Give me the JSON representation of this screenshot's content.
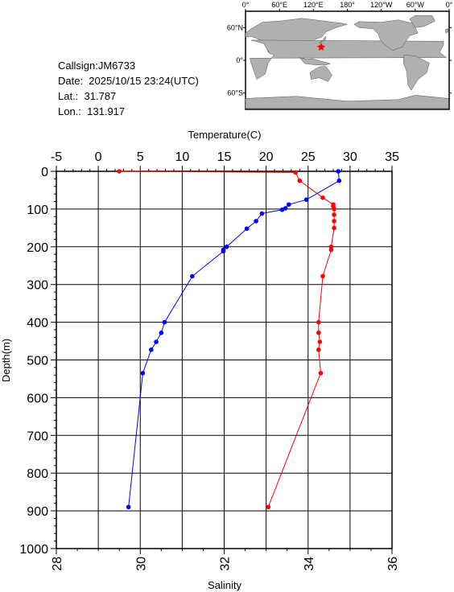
{
  "info": {
    "callsign": "Callsign:JM6733",
    "date": "Date:  2025/10/15 23:24(UTC)",
    "lat": "Lat.:  31.787",
    "lon": "Lon.:  131.917"
  },
  "map": {
    "lon_labels": [
      "0°",
      "60°E",
      "120°E",
      "180°",
      "120°W",
      "60°W",
      "0°"
    ],
    "lat_labels": [
      "60°N",
      "0°",
      "60°S"
    ],
    "marker_color": "#ff0000",
    "land_color": "#b0b0b0",
    "ocean_color": "#ffffff"
  },
  "chart_data": {
    "type": "line",
    "top_axis": {
      "label": "Temperature(C)",
      "range": [
        -5,
        35
      ],
      "ticks": [
        "-5",
        "0",
        "5",
        "10",
        "15",
        "20",
        "25",
        "30",
        "35"
      ]
    },
    "bottom_axis": {
      "label": "Salinity",
      "range": [
        28,
        36
      ],
      "ticks": [
        "28",
        "30",
        "32",
        "34",
        "36"
      ]
    },
    "y_axis": {
      "label": "Depth(m)",
      "range": [
        0,
        1000
      ],
      "inverted": true,
      "ticks": [
        "0",
        "100",
        "200",
        "300",
        "400",
        "500",
        "600",
        "700",
        "800",
        "900",
        "1000"
      ]
    },
    "grid": true,
    "series": [
      {
        "variable": "temperature",
        "color": "#0000ff",
        "points": [
          {
            "x": 28.6,
            "y": 0
          },
          {
            "x": 28.7,
            "y": 25
          },
          {
            "x": 24.8,
            "y": 75
          },
          {
            "x": 22.7,
            "y": 88
          },
          {
            "x": 22.3,
            "y": 98
          },
          {
            "x": 21.9,
            "y": 102
          },
          {
            "x": 19.5,
            "y": 112
          },
          {
            "x": 18.8,
            "y": 132
          },
          {
            "x": 17.7,
            "y": 152
          },
          {
            "x": 15.3,
            "y": 200
          },
          {
            "x": 14.9,
            "y": 208
          },
          {
            "x": 14.9,
            "y": 212
          },
          {
            "x": 11.2,
            "y": 278
          },
          {
            "x": 7.9,
            "y": 400
          },
          {
            "x": 7.5,
            "y": 428
          },
          {
            "x": 6.9,
            "y": 452
          },
          {
            "x": 6.3,
            "y": 473
          },
          {
            "x": 5.3,
            "y": 535
          },
          {
            "x": 3.6,
            "y": 890
          }
        ]
      },
      {
        "variable": "salinity",
        "color": "#ff0000",
        "points": [
          {
            "x": 29.5,
            "y": 0
          },
          {
            "x": 33.7,
            "y": 3
          },
          {
            "x": 33.8,
            "y": 25
          },
          {
            "x": 34.35,
            "y": 70
          },
          {
            "x": 34.6,
            "y": 88
          },
          {
            "x": 34.6,
            "y": 93
          },
          {
            "x": 34.62,
            "y": 100
          },
          {
            "x": 34.62,
            "y": 115
          },
          {
            "x": 34.62,
            "y": 132
          },
          {
            "x": 34.62,
            "y": 150
          },
          {
            "x": 34.55,
            "y": 200
          },
          {
            "x": 34.55,
            "y": 208
          },
          {
            "x": 34.35,
            "y": 278
          },
          {
            "x": 34.25,
            "y": 400
          },
          {
            "x": 34.25,
            "y": 428
          },
          {
            "x": 34.28,
            "y": 452
          },
          {
            "x": 34.25,
            "y": 473
          },
          {
            "x": 34.3,
            "y": 535
          },
          {
            "x": 33.05,
            "y": 890
          }
        ]
      }
    ]
  }
}
